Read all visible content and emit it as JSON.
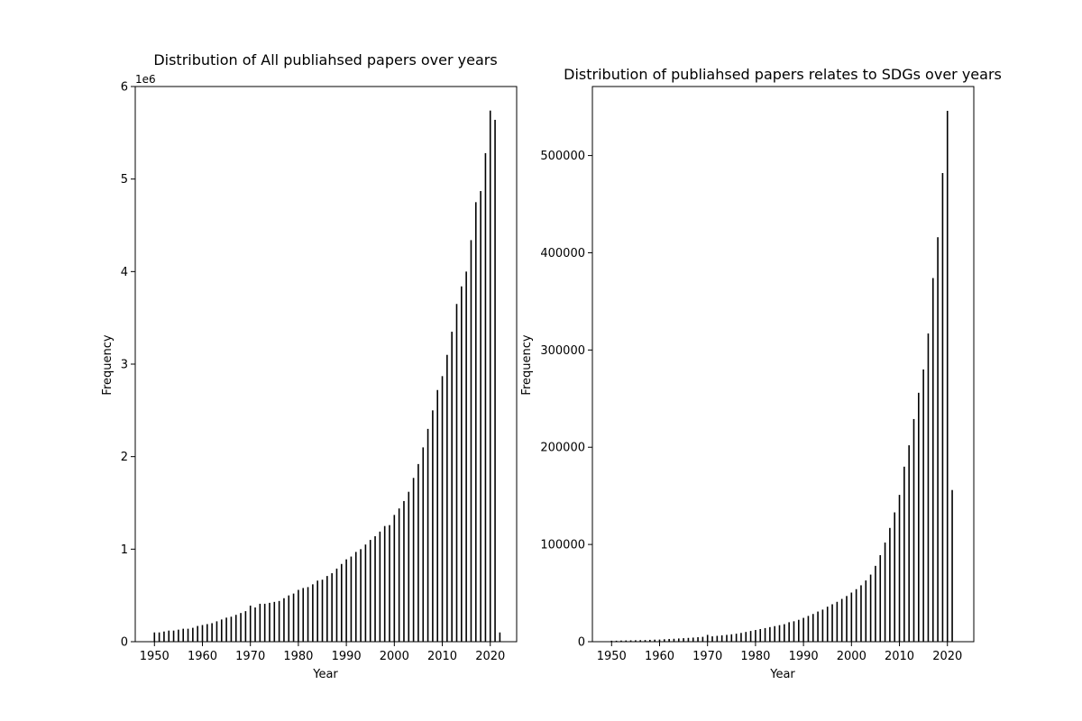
{
  "chart_data": [
    {
      "type": "bar",
      "title": "Distribution of All publiahsed papers over years",
      "xlabel": "Year",
      "ylabel": "Frequency",
      "offset_text": "1e6",
      "scale": 1000000,
      "xlim": [
        1946,
        2025.5
      ],
      "ylim": [
        0,
        6000000
      ],
      "xticks": [
        1950,
        1960,
        1970,
        1980,
        1990,
        2000,
        2010,
        2020
      ],
      "yticks": [
        0,
        1,
        2,
        3,
        4,
        5,
        6
      ],
      "grid": false,
      "bar_color": "#000000",
      "x": [
        1950,
        1951,
        1952,
        1953,
        1954,
        1955,
        1956,
        1957,
        1958,
        1959,
        1960,
        1961,
        1962,
        1963,
        1964,
        1965,
        1966,
        1967,
        1968,
        1969,
        1970,
        1971,
        1972,
        1973,
        1974,
        1975,
        1976,
        1977,
        1978,
        1979,
        1980,
        1981,
        1982,
        1983,
        1984,
        1985,
        1986,
        1987,
        1988,
        1989,
        1990,
        1991,
        1992,
        1993,
        1994,
        1995,
        1996,
        1997,
        1998,
        1999,
        2000,
        2001,
        2002,
        2003,
        2004,
        2005,
        2006,
        2007,
        2008,
        2009,
        2010,
        2011,
        2012,
        2013,
        2014,
        2015,
        2016,
        2017,
        2018,
        2019,
        2020,
        2021,
        2022
      ],
      "values": [
        100000,
        100000,
        110000,
        120000,
        120000,
        130000,
        140000,
        140000,
        150000,
        170000,
        180000,
        190000,
        200000,
        220000,
        240000,
        260000,
        270000,
        290000,
        310000,
        330000,
        390000,
        370000,
        410000,
        410000,
        420000,
        430000,
        440000,
        470000,
        500000,
        520000,
        560000,
        580000,
        590000,
        620000,
        660000,
        670000,
        710000,
        740000,
        790000,
        840000,
        890000,
        920000,
        970000,
        1000000,
        1050000,
        1100000,
        1140000,
        1190000,
        1250000,
        1260000,
        1370000,
        1440000,
        1520000,
        1620000,
        1770000,
        1920000,
        2100000,
        2300000,
        2500000,
        2720000,
        2870000,
        3100000,
        3350000,
        3650000,
        3840000,
        4000000,
        4340000,
        4750000,
        4870000,
        5280000,
        5740000,
        5640000,
        100000
      ]
    },
    {
      "type": "bar",
      "title": "Distribution of publiahsed papers relates to SDGs over years",
      "xlabel": "Year",
      "ylabel": "Frequency",
      "scale": 1,
      "xlim": [
        1946,
        2025.5
      ],
      "ylim": [
        0,
        571000
      ],
      "xticks": [
        1950,
        1960,
        1970,
        1980,
        1990,
        2000,
        2010,
        2020
      ],
      "yticks": [
        0,
        100000,
        200000,
        300000,
        400000,
        500000
      ],
      "grid": false,
      "bar_color": "#000000",
      "x": [
        1950,
        1951,
        1952,
        1953,
        1954,
        1955,
        1956,
        1957,
        1958,
        1959,
        1960,
        1961,
        1962,
        1963,
        1964,
        1965,
        1966,
        1967,
        1968,
        1969,
        1970,
        1971,
        1972,
        1973,
        1974,
        1975,
        1976,
        1977,
        1978,
        1979,
        1980,
        1981,
        1982,
        1983,
        1984,
        1985,
        1986,
        1987,
        1988,
        1989,
        1990,
        1991,
        1992,
        1993,
        1994,
        1995,
        1996,
        1997,
        1998,
        1999,
        2000,
        2001,
        2002,
        2003,
        2004,
        2005,
        2006,
        2007,
        2008,
        2009,
        2010,
        2011,
        2012,
        2013,
        2014,
        2015,
        2016,
        2017,
        2018,
        2019,
        2020,
        2021
      ],
      "values": [
        1000,
        1000,
        1200,
        1300,
        1400,
        1500,
        1600,
        1700,
        1900,
        2100,
        2200,
        2500,
        2800,
        3000,
        3300,
        3600,
        3900,
        4200,
        4600,
        5000,
        7000,
        5500,
        6000,
        6500,
        7000,
        7600,
        8200,
        9000,
        10000,
        11000,
        12000,
        13000,
        14000,
        15000,
        16000,
        17000,
        18000,
        20000,
        21000,
        22500,
        24500,
        26500,
        28500,
        31000,
        33000,
        36000,
        38500,
        41000,
        44000,
        47000,
        50500,
        54000,
        58000,
        63000,
        69000,
        78000,
        89000,
        102000,
        117000,
        133000,
        151000,
        180000,
        202000,
        229000,
        256000,
        280000,
        317000,
        374000,
        416000,
        482000,
        546000,
        156000
      ]
    }
  ]
}
